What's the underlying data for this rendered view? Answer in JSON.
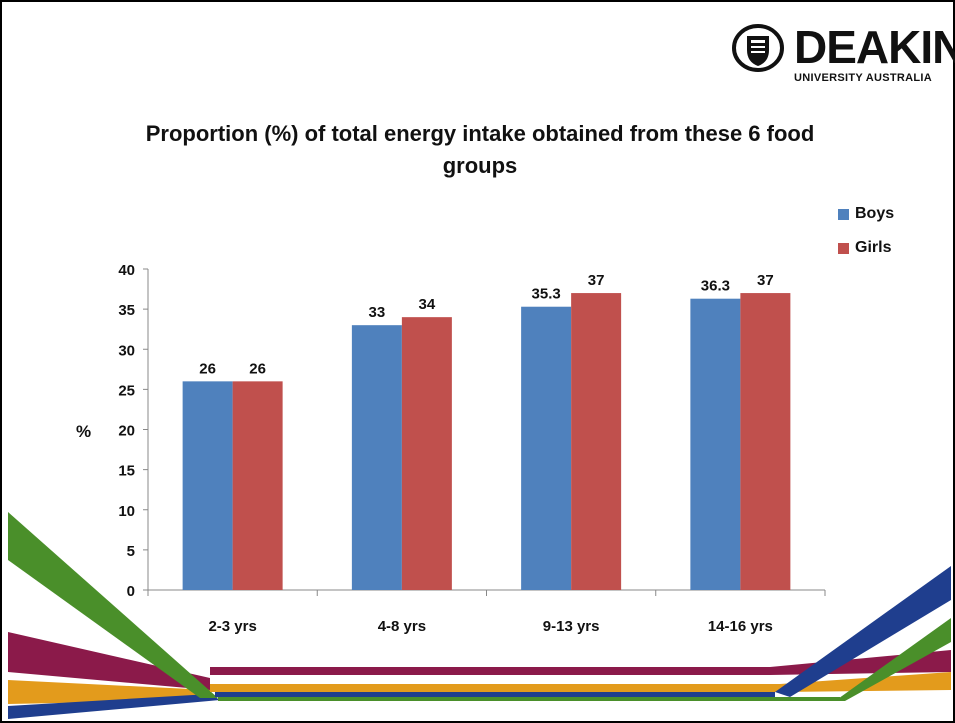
{
  "logo": {
    "name": "DEAKIN",
    "subtitle": "UNIVERSITY AUSTRALIA"
  },
  "colors": {
    "boys": "#4f81bd",
    "girls": "#c0504d"
  },
  "chart_data": {
    "type": "bar",
    "title": "Proportion (%) of total energy intake obtained from these 6 food groups",
    "ylabel": "%",
    "xlabel": "",
    "categories": [
      "2-3 yrs",
      "4-8 yrs",
      "9-13 yrs",
      "14-16 yrs"
    ],
    "series": [
      {
        "name": "Boys",
        "values": [
          26,
          33,
          35.3,
          36.3
        ],
        "labels": [
          "26",
          "33",
          "35.3",
          "36.3"
        ]
      },
      {
        "name": "Girls",
        "values": [
          26,
          34,
          37,
          37
        ],
        "labels": [
          "26",
          "34",
          "37",
          "37"
        ]
      }
    ],
    "ylim": [
      0,
      40
    ],
    "yticks": [
      "0",
      "5",
      "10",
      "15",
      "20",
      "25",
      "30",
      "35",
      "40"
    ],
    "grid": false,
    "legend": "right"
  }
}
